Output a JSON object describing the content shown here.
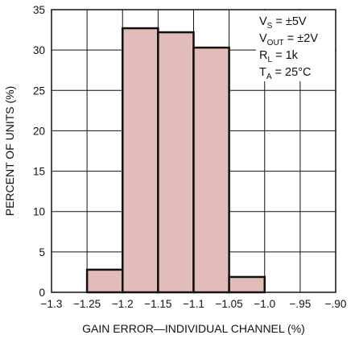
{
  "chart_data": {
    "type": "bar",
    "title": "",
    "xlabel": "GAIN ERROR—INDIVIDUAL CHANNEL (%)",
    "ylabel": "PERCENT OF UNITS (%)",
    "xlim": [
      -1.3,
      -0.9
    ],
    "ylim": [
      0,
      35
    ],
    "grid": true,
    "x_ticks": [
      -1.3,
      -1.25,
      -1.2,
      -1.15,
      -1.1,
      -1.05,
      -1.0,
      -0.95,
      -0.9
    ],
    "x_tick_labels": [
      "−1.3",
      "−1.25",
      "−1.2",
      "−1.15",
      "−1.1",
      "−1.05",
      "−1.0",
      "−.95",
      "−.90"
    ],
    "y_ticks": [
      0,
      5,
      10,
      15,
      20,
      25,
      30,
      35
    ],
    "y_tick_labels": [
      "0",
      "5",
      "10",
      "15",
      "20",
      "25",
      "30",
      "35"
    ],
    "bins": [
      {
        "x0": -1.25,
        "x1": -1.2,
        "value": 2.8
      },
      {
        "x0": -1.2,
        "x1": -1.15,
        "value": 32.7
      },
      {
        "x0": -1.15,
        "x1": -1.1,
        "value": 32.2
      },
      {
        "x0": -1.1,
        "x1": -1.05,
        "value": 30.3
      },
      {
        "x0": -1.05,
        "x1": -1.0,
        "value": 1.9
      }
    ],
    "annotations": [
      {
        "main": "V",
        "sub": "S",
        "rest": " = ±5V"
      },
      {
        "main": "V",
        "sub": "OUT",
        "rest": " = ±2V"
      },
      {
        "main": "R",
        "sub": "L",
        "rest": " = 1k"
      },
      {
        "main": "T",
        "sub": "A",
        "rest": " = 25°C"
      }
    ]
  }
}
